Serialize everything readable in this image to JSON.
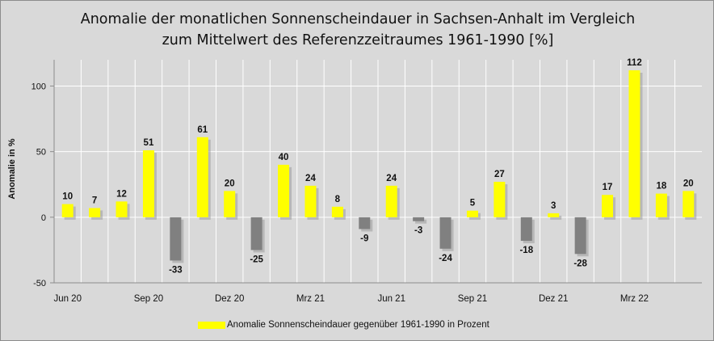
{
  "chart_data": {
    "type": "bar",
    "title_lines": [
      "Anomalie der monatlichen Sonnenscheindauer  in Sachsen-Anhalt im Vergleich",
      "zum Mittelwert des Referenzzeitraumes  1961-1990 [%]"
    ],
    "ylabel": "Anomalie in %",
    "xlabel": "",
    "ylim": [
      -50,
      120
    ],
    "yticks": [
      -50,
      0,
      50,
      100
    ],
    "categories": [
      "Jun 20",
      "Jul 20",
      "Aug 20",
      "Sep 20",
      "Okt 20",
      "Nov 20",
      "Dez 20",
      "Jan 21",
      "Feb 21",
      "Mrz 21",
      "Apr 21",
      "Mai 21",
      "Jun 21",
      "Jul 21",
      "Aug 21",
      "Sep 21",
      "Okt 21",
      "Nov 21",
      "Dez 21",
      "Jan 22",
      "Feb 22",
      "Mrz 22",
      "Apr 22",
      "Mai 22"
    ],
    "x_tick_labels": [
      "Jun 20",
      "",
      "",
      "Sep 20",
      "",
      "",
      "Dez 20",
      "",
      "",
      "Mrz 21",
      "",
      "",
      "Jun 21",
      "",
      "",
      "Sep 21",
      "",
      "",
      "Dez 21",
      "",
      "",
      "Mrz 22",
      "",
      ""
    ],
    "series": [
      {
        "name": "Anomalie Sonnenscheindauer gegenüber 1961-1990 in Prozent",
        "values": [
          10,
          7,
          12,
          51,
          -33,
          61,
          20,
          -25,
          40,
          24,
          8,
          -9,
          24,
          -3,
          -24,
          5,
          27,
          -18,
          3,
          -28,
          17,
          112,
          18,
          20
        ]
      }
    ],
    "colors": {
      "positive": "#ffff00",
      "negative": "#808080",
      "plot_background": "#d9d9d9",
      "grid": "#ffffff"
    },
    "grid": true,
    "legend_position": "bottom"
  }
}
